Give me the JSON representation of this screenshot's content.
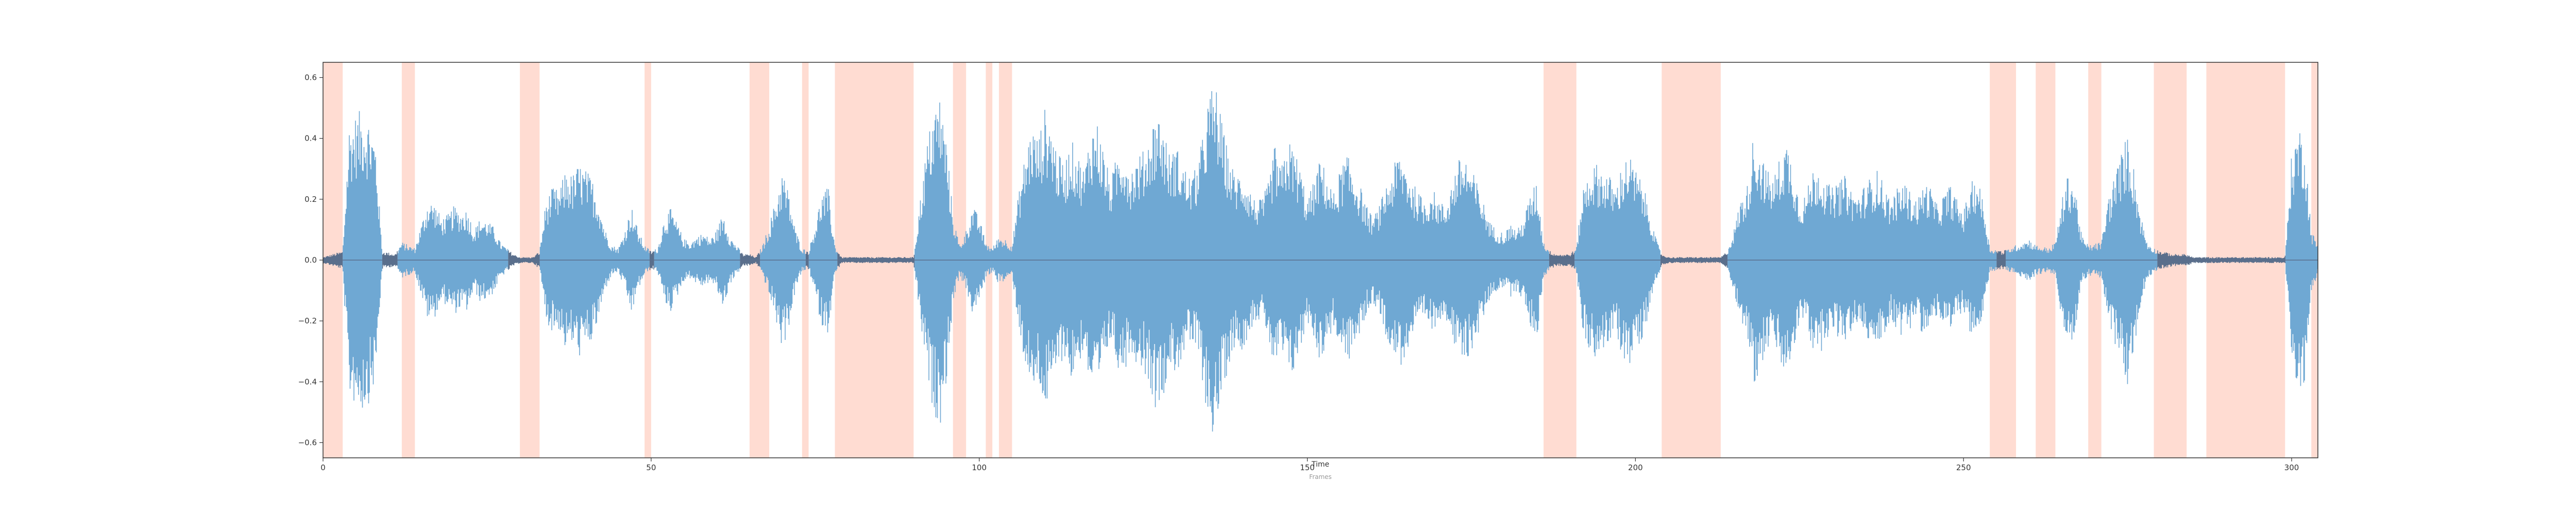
{
  "chart_data": {
    "type": "area",
    "title": "",
    "xlabel": "Time",
    "xlabel_secondary": "Frames",
    "ylabel": "",
    "xlim": [
      0,
      304
    ],
    "ylim": [
      -0.65,
      0.65
    ],
    "xticks": [
      {
        "value": 0,
        "label": "0"
      },
      {
        "value": 50,
        "label": "50"
      },
      {
        "value": 100,
        "label": "100"
      },
      {
        "value": 150,
        "label": "150"
      },
      {
        "value": 200,
        "label": "200"
      },
      {
        "value": 250,
        "label": "250"
      },
      {
        "value": 300,
        "label": "300"
      }
    ],
    "yticks": [
      {
        "value": 0.6,
        "label": "0.6"
      },
      {
        "value": 0.4,
        "label": "0.4"
      },
      {
        "value": 0.2,
        "label": "0.2"
      },
      {
        "value": 0.0,
        "label": "0.0"
      },
      {
        "value": -0.2,
        "label": "−0.2"
      },
      {
        "value": -0.4,
        "label": "−0.4"
      },
      {
        "value": -0.6,
        "label": "−0.6"
      }
    ],
    "grid": false,
    "colors": {
      "waveform": "#6fa8d3",
      "waveform_quiet": "#5a6f8c",
      "highlight": "#ffdcd2",
      "axes": "#333333"
    },
    "highlight_regions": [
      [
        0,
        3
      ],
      [
        12,
        14
      ],
      [
        30,
        33
      ],
      [
        49,
        50
      ],
      [
        65,
        68
      ],
      [
        73,
        74
      ],
      [
        78,
        90
      ],
      [
        96,
        98
      ],
      [
        101,
        102
      ],
      [
        103,
        105
      ],
      [
        186,
        191
      ],
      [
        204,
        213
      ],
      [
        254,
        258
      ],
      [
        261,
        264
      ],
      [
        269,
        271
      ],
      [
        279,
        284
      ],
      [
        287,
        299
      ],
      [
        303,
        304
      ]
    ],
    "envelope": [
      [
        0,
        0.01
      ],
      [
        3,
        0.03
      ],
      [
        4,
        0.45
      ],
      [
        5,
        0.48
      ],
      [
        6,
        0.5
      ],
      [
        7,
        0.47
      ],
      [
        8,
        0.4
      ],
      [
        9,
        0.03
      ],
      [
        11,
        0.02
      ],
      [
        12,
        0.06
      ],
      [
        13,
        0.05
      ],
      [
        14,
        0.04
      ],
      [
        15,
        0.12
      ],
      [
        16,
        0.2
      ],
      [
        17,
        0.19
      ],
      [
        18,
        0.14
      ],
      [
        19,
        0.15
      ],
      [
        20,
        0.18
      ],
      [
        21,
        0.16
      ],
      [
        22,
        0.17
      ],
      [
        23,
        0.1
      ],
      [
        24,
        0.14
      ],
      [
        25,
        0.13
      ],
      [
        26,
        0.11
      ],
      [
        27,
        0.06
      ],
      [
        28,
        0.04
      ],
      [
        29,
        0.02
      ],
      [
        30,
        0.01
      ],
      [
        31,
        0.01
      ],
      [
        32,
        0.01
      ],
      [
        33,
        0.03
      ],
      [
        34,
        0.2
      ],
      [
        35,
        0.24
      ],
      [
        36,
        0.23
      ],
      [
        37,
        0.3
      ],
      [
        38,
        0.28
      ],
      [
        39,
        0.32
      ],
      [
        40,
        0.3
      ],
      [
        41,
        0.27
      ],
      [
        42,
        0.2
      ],
      [
        43,
        0.1
      ],
      [
        44,
        0.05
      ],
      [
        45,
        0.04
      ],
      [
        46,
        0.1
      ],
      [
        47,
        0.18
      ],
      [
        48,
        0.1
      ],
      [
        49,
        0.05
      ],
      [
        50,
        0.03
      ],
      [
        51,
        0.04
      ],
      [
        52,
        0.14
      ],
      [
        53,
        0.17
      ],
      [
        54,
        0.12
      ],
      [
        55,
        0.07
      ],
      [
        56,
        0.06
      ],
      [
        57,
        0.08
      ],
      [
        58,
        0.09
      ],
      [
        59,
        0.07
      ],
      [
        60,
        0.1
      ],
      [
        61,
        0.16
      ],
      [
        62,
        0.08
      ],
      [
        63,
        0.05
      ],
      [
        64,
        0.02
      ],
      [
        65,
        0.02
      ],
      [
        66,
        0.01
      ],
      [
        67,
        0.05
      ],
      [
        68,
        0.12
      ],
      [
        69,
        0.2
      ],
      [
        70,
        0.3
      ],
      [
        71,
        0.22
      ],
      [
        72,
        0.1
      ],
      [
        73,
        0.04
      ],
      [
        74,
        0.03
      ],
      [
        75,
        0.12
      ],
      [
        76,
        0.22
      ],
      [
        77,
        0.24
      ],
      [
        78,
        0.05
      ],
      [
        79,
        0.01
      ],
      [
        80,
        0.01
      ],
      [
        85,
        0.01
      ],
      [
        90,
        0.01
      ],
      [
        91,
        0.2
      ],
      [
        92,
        0.38
      ],
      [
        93,
        0.5
      ],
      [
        94,
        0.55
      ],
      [
        95,
        0.4
      ],
      [
        96,
        0.15
      ],
      [
        97,
        0.05
      ],
      [
        98,
        0.1
      ],
      [
        99,
        0.18
      ],
      [
        100,
        0.14
      ],
      [
        101,
        0.06
      ],
      [
        102,
        0.04
      ],
      [
        103,
        0.08
      ],
      [
        104,
        0.07
      ],
      [
        105,
        0.05
      ],
      [
        106,
        0.22
      ],
      [
        107,
        0.35
      ],
      [
        108,
        0.45
      ],
      [
        109,
        0.4
      ],
      [
        110,
        0.5
      ],
      [
        111,
        0.45
      ],
      [
        112,
        0.35
      ],
      [
        113,
        0.32
      ],
      [
        114,
        0.4
      ],
      [
        115,
        0.35
      ],
      [
        116,
        0.3
      ],
      [
        117,
        0.44
      ],
      [
        118,
        0.46
      ],
      [
        119,
        0.36
      ],
      [
        120,
        0.26
      ],
      [
        121,
        0.35
      ],
      [
        122,
        0.38
      ],
      [
        123,
        0.3
      ],
      [
        124,
        0.34
      ],
      [
        125,
        0.36
      ],
      [
        126,
        0.42
      ],
      [
        127,
        0.5
      ],
      [
        128,
        0.45
      ],
      [
        129,
        0.35
      ],
      [
        130,
        0.38
      ],
      [
        131,
        0.32
      ],
      [
        132,
        0.28
      ],
      [
        133,
        0.3
      ],
      [
        134,
        0.4
      ],
      [
        135,
        0.55
      ],
      [
        136,
        0.59
      ],
      [
        137,
        0.45
      ],
      [
        138,
        0.35
      ],
      [
        139,
        0.28
      ],
      [
        140,
        0.3
      ],
      [
        141,
        0.25
      ],
      [
        142,
        0.2
      ],
      [
        143,
        0.2
      ],
      [
        144,
        0.25
      ],
      [
        145,
        0.38
      ],
      [
        146,
        0.3
      ],
      [
        147,
        0.4
      ],
      [
        148,
        0.37
      ],
      [
        149,
        0.3
      ],
      [
        150,
        0.2
      ],
      [
        151,
        0.26
      ],
      [
        152,
        0.34
      ],
      [
        153,
        0.28
      ],
      [
        154,
        0.22
      ],
      [
        155,
        0.3
      ],
      [
        156,
        0.35
      ],
      [
        157,
        0.3
      ],
      [
        158,
        0.25
      ],
      [
        159,
        0.18
      ],
      [
        160,
        0.14
      ],
      [
        161,
        0.18
      ],
      [
        162,
        0.25
      ],
      [
        163,
        0.3
      ],
      [
        164,
        0.36
      ],
      [
        165,
        0.32
      ],
      [
        166,
        0.26
      ],
      [
        167,
        0.22
      ],
      [
        168,
        0.2
      ],
      [
        169,
        0.24
      ],
      [
        170,
        0.2
      ],
      [
        171,
        0.18
      ],
      [
        172,
        0.26
      ],
      [
        173,
        0.33
      ],
      [
        174,
        0.35
      ],
      [
        175,
        0.3
      ],
      [
        176,
        0.25
      ],
      [
        177,
        0.18
      ],
      [
        178,
        0.12
      ],
      [
        179,
        0.1
      ],
      [
        180,
        0.09
      ],
      [
        181,
        0.12
      ],
      [
        182,
        0.1
      ],
      [
        183,
        0.14
      ],
      [
        184,
        0.22
      ],
      [
        185,
        0.26
      ],
      [
        186,
        0.06
      ],
      [
        187,
        0.03
      ],
      [
        188,
        0.02
      ],
      [
        190,
        0.02
      ],
      [
        191,
        0.04
      ],
      [
        192,
        0.24
      ],
      [
        193,
        0.3
      ],
      [
        194,
        0.32
      ],
      [
        195,
        0.3
      ],
      [
        196,
        0.28
      ],
      [
        197,
        0.24
      ],
      [
        198,
        0.32
      ],
      [
        199,
        0.35
      ],
      [
        200,
        0.3
      ],
      [
        201,
        0.26
      ],
      [
        202,
        0.18
      ],
      [
        203,
        0.08
      ],
      [
        204,
        0.02
      ],
      [
        205,
        0.01
      ],
      [
        210,
        0.01
      ],
      [
        213,
        0.01
      ],
      [
        214,
        0.03
      ],
      [
        215,
        0.1
      ],
      [
        216,
        0.2
      ],
      [
        217,
        0.24
      ],
      [
        218,
        0.42
      ],
      [
        219,
        0.36
      ],
      [
        220,
        0.3
      ],
      [
        221,
        0.27
      ],
      [
        222,
        0.34
      ],
      [
        223,
        0.4
      ],
      [
        224,
        0.32
      ],
      [
        225,
        0.2
      ],
      [
        226,
        0.22
      ],
      [
        227,
        0.3
      ],
      [
        228,
        0.32
      ],
      [
        229,
        0.26
      ],
      [
        230,
        0.24
      ],
      [
        231,
        0.26
      ],
      [
        232,
        0.28
      ],
      [
        233,
        0.23
      ],
      [
        234,
        0.22
      ],
      [
        235,
        0.25
      ],
      [
        236,
        0.28
      ],
      [
        237,
        0.3
      ],
      [
        238,
        0.24
      ],
      [
        239,
        0.2
      ],
      [
        240,
        0.24
      ],
      [
        241,
        0.26
      ],
      [
        242,
        0.22
      ],
      [
        243,
        0.2
      ],
      [
        244,
        0.26
      ],
      [
        245,
        0.24
      ],
      [
        246,
        0.18
      ],
      [
        247,
        0.22
      ],
      [
        248,
        0.25
      ],
      [
        249,
        0.2
      ],
      [
        250,
        0.16
      ],
      [
        251,
        0.25
      ],
      [
        252,
        0.28
      ],
      [
        253,
        0.2
      ],
      [
        254,
        0.04
      ],
      [
        256,
        0.03
      ],
      [
        258,
        0.05
      ],
      [
        259,
        0.06
      ],
      [
        260,
        0.07
      ],
      [
        261,
        0.05
      ],
      [
        263,
        0.04
      ],
      [
        264,
        0.06
      ],
      [
        265,
        0.2
      ],
      [
        266,
        0.29
      ],
      [
        267,
        0.25
      ],
      [
        268,
        0.08
      ],
      [
        269,
        0.05
      ],
      [
        271,
        0.06
      ],
      [
        272,
        0.2
      ],
      [
        273,
        0.28
      ],
      [
        274,
        0.35
      ],
      [
        275,
        0.42
      ],
      [
        276,
        0.3
      ],
      [
        277,
        0.15
      ],
      [
        278,
        0.06
      ],
      [
        279,
        0.04
      ],
      [
        280,
        0.03
      ],
      [
        282,
        0.02
      ],
      [
        284,
        0.02
      ],
      [
        285,
        0.01
      ],
      [
        290,
        0.01
      ],
      [
        299,
        0.01
      ],
      [
        300,
        0.35
      ],
      [
        301,
        0.45
      ],
      [
        302,
        0.4
      ],
      [
        303,
        0.1
      ],
      [
        304,
        0.05
      ]
    ]
  }
}
